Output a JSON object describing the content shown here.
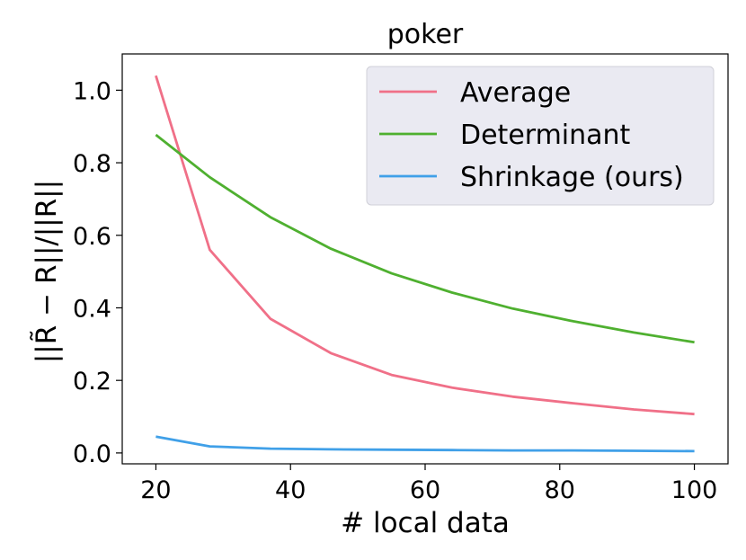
{
  "chart_data": {
    "type": "line",
    "title": "poker",
    "xlabel": "# local data",
    "ylabel": "||R̃ − R||/||R||",
    "xlim": [
      15,
      105
    ],
    "ylim": [
      -0.03,
      1.1
    ],
    "xticks": [
      20,
      40,
      60,
      80,
      100
    ],
    "yticks": [
      0.0,
      0.2,
      0.4,
      0.6,
      0.8,
      1.0
    ],
    "xtick_labels": [
      "20",
      "40",
      "60",
      "80",
      "100"
    ],
    "ytick_labels": [
      "0.0",
      "0.2",
      "0.4",
      "0.6",
      "0.8",
      "1.0"
    ],
    "grid": false,
    "legend": "top-right",
    "x": [
      20,
      28,
      37,
      46,
      55,
      64,
      73,
      82,
      91,
      100
    ],
    "series": [
      {
        "name": "Average",
        "color": "#f07088",
        "values": [
          1.04,
          0.56,
          0.37,
          0.275,
          0.215,
          0.18,
          0.155,
          0.137,
          0.12,
          0.107
        ]
      },
      {
        "name": "Determinant",
        "color": "#4fb030",
        "values": [
          0.877,
          0.76,
          0.65,
          0.563,
          0.495,
          0.442,
          0.398,
          0.363,
          0.332,
          0.305
        ]
      },
      {
        "name": "Shrinkage (ours)",
        "color": "#40a0e8",
        "values": [
          0.045,
          0.018,
          0.012,
          0.01,
          0.009,
          0.008,
          0.007,
          0.007,
          0.006,
          0.005
        ]
      }
    ]
  }
}
